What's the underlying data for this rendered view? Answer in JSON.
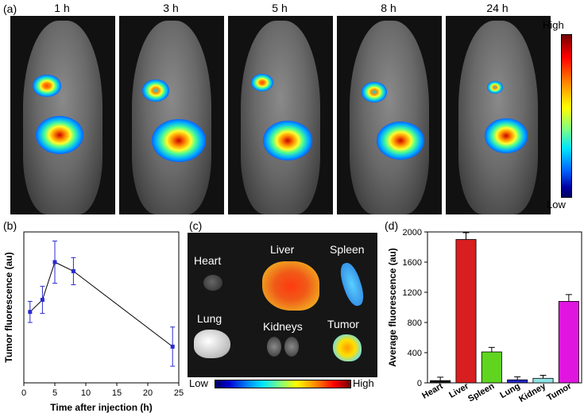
{
  "panels": {
    "a": {
      "label": "(a)",
      "times": [
        "1 h",
        "3 h",
        "5 h",
        "8 h",
        "24 h"
      ],
      "scale_high": "High",
      "scale_low": "Low"
    },
    "b": {
      "label": "(b)"
    },
    "c": {
      "label": "(c)",
      "organs": [
        "Heart",
        "Liver",
        "Spleen",
        "Lung",
        "Kidneys",
        "Tumor"
      ],
      "scale_low": "Low",
      "scale_high": "High"
    },
    "d": {
      "label": "(d)"
    }
  },
  "colors": {
    "heart": "#111111",
    "liver": "#d81e1e",
    "spleen": "#5fd520",
    "lung": "#2525c8",
    "kidney": "#8fe3e3",
    "tumor": "#e016e0",
    "line_b": "#2a2ad0"
  },
  "chart_data": [
    {
      "type": "line",
      "xlabel": "Time after injection (h)",
      "ylabel": "Tumor fluorescence (au)",
      "xlim": [
        0,
        25
      ],
      "xticks": [
        0,
        5,
        10,
        15,
        20,
        25
      ],
      "ylim": [
        0,
        1
      ],
      "x": [
        1,
        3,
        5,
        8,
        24
      ],
      "y": [
        0.47,
        0.55,
        0.8,
        0.74,
        0.24
      ],
      "yerr": [
        0.07,
        0.09,
        0.14,
        0.09,
        0.13
      ],
      "grid": false
    },
    {
      "type": "bar",
      "ylabel": "Average fluorescence (au)",
      "categories": [
        "Heart",
        "Liver",
        "Spleen",
        "Lung",
        "Kidney",
        "Tumor"
      ],
      "values": [
        30,
        1900,
        410,
        40,
        60,
        1080
      ],
      "errors": [
        45,
        90,
        60,
        40,
        40,
        90
      ],
      "ylim": [
        0,
        2000
      ],
      "yticks": [
        0,
        400,
        800,
        1200,
        1600,
        2000
      ],
      "grid": false
    }
  ]
}
